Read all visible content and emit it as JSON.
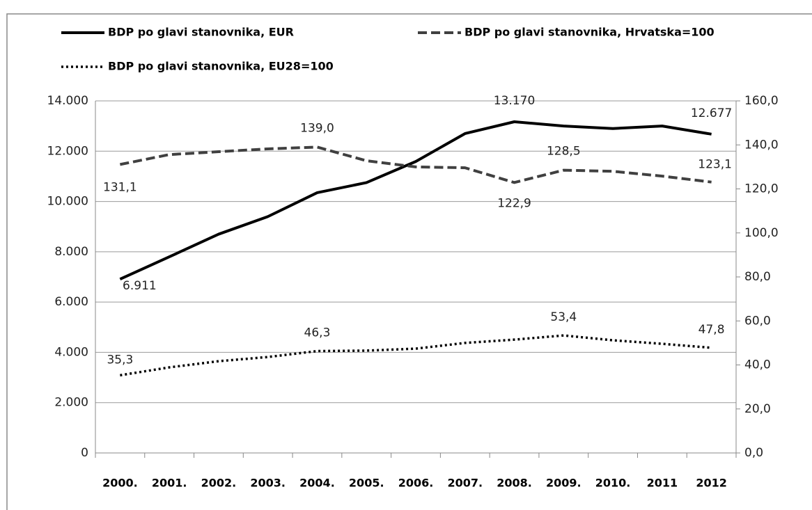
{
  "chart_data": {
    "type": "line",
    "categories": [
      "2000.",
      "2001.",
      "2002.",
      "2003.",
      "2004.",
      "2005.",
      "2006.",
      "2007.",
      "2008.",
      "2009.",
      "2010.",
      "2011",
      "2012"
    ],
    "series": [
      {
        "name": "BDP po glavi stanovnika, EUR",
        "color": "#000000",
        "style": "solid",
        "values": [
          6911,
          7800,
          8700,
          9400,
          10350,
          10750,
          11590,
          12700,
          13170,
          13000,
          12900,
          13000,
          12677
        ],
        "value_labels": [
          "6.911",
          null,
          null,
          null,
          null,
          null,
          null,
          null,
          "13.170",
          null,
          null,
          null,
          "12.677"
        ]
      },
      {
        "name": "BDP po glavi stanovnika, Hrvatska=100",
        "color": "#404040",
        "style": "dashed",
        "axis": "y2",
        "values": [
          131.1,
          135.6,
          136.9,
          138.2,
          139.0,
          132.8,
          130.0,
          129.6,
          122.9,
          128.5,
          128.0,
          125.8,
          123.1
        ],
        "value_labels": [
          "131,1",
          null,
          null,
          null,
          "139,0",
          null,
          null,
          null,
          "122,9",
          "128,5",
          null,
          null,
          "123,1"
        ]
      },
      {
        "name": "BDP po glavi stanovnika, EU28=100",
        "color": "#000000",
        "style": "dotted",
        "axis": "y2",
        "values": [
          35.3,
          38.9,
          41.7,
          43.6,
          46.3,
          46.5,
          47.4,
          50.0,
          51.5,
          53.4,
          51.2,
          49.6,
          47.8
        ],
        "value_labels": [
          "35,3",
          null,
          null,
          null,
          "46,3",
          null,
          null,
          null,
          null,
          "53,4",
          null,
          null,
          "47,8"
        ]
      }
    ],
    "ylim": [
      0,
      14000
    ],
    "yticks": [
      0,
      {
        "value": 2000,
        "label": "2.000"
      },
      {
        "value": 4000,
        "label": "4.000"
      },
      {
        "value": 6000,
        "label": "6.000"
      },
      {
        "value": 8000,
        "label": "8.000"
      },
      {
        "value": 10000,
        "label": "10.000"
      },
      {
        "value": 12000,
        "label": "12.000"
      },
      {
        "value": 14000,
        "label": "14.000"
      }
    ],
    "y2lim": [
      0,
      160
    ],
    "y2ticks": [
      {
        "value": 0,
        "label": "0,0"
      },
      {
        "value": 20,
        "label": "20,0"
      },
      {
        "value": 40,
        "label": "40,0"
      },
      {
        "value": 60,
        "label": "60,0"
      },
      {
        "value": 80,
        "label": "80,0"
      },
      {
        "value": 100,
        "label": "100,0"
      },
      {
        "value": 120,
        "label": "120,0"
      },
      {
        "value": 140,
        "label": "140,0"
      },
      {
        "value": 160,
        "label": "160,0"
      }
    ],
    "grid": true,
    "legend": "top"
  }
}
